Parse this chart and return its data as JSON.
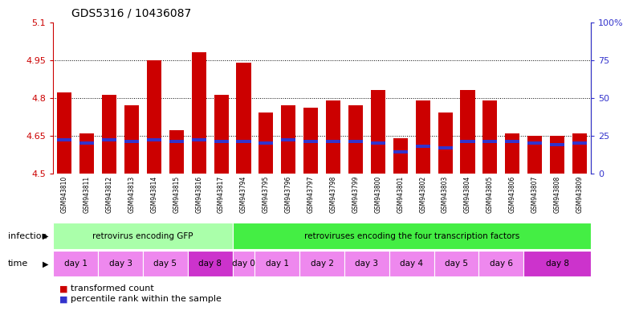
{
  "title": "GDS5316 / 10436087",
  "samples": [
    "GSM943810",
    "GSM943811",
    "GSM943812",
    "GSM943813",
    "GSM943814",
    "GSM943815",
    "GSM943816",
    "GSM943817",
    "GSM943794",
    "GSM943795",
    "GSM943796",
    "GSM943797",
    "GSM943798",
    "GSM943799",
    "GSM943800",
    "GSM943801",
    "GSM943802",
    "GSM943803",
    "GSM943804",
    "GSM943805",
    "GSM943806",
    "GSM943807",
    "GSM943808",
    "GSM943809"
  ],
  "transformed_count": [
    4.82,
    4.66,
    4.81,
    4.77,
    4.95,
    4.67,
    4.98,
    4.81,
    4.94,
    4.74,
    4.77,
    4.76,
    4.79,
    4.77,
    4.83,
    4.64,
    4.79,
    4.74,
    4.83,
    4.79,
    4.66,
    4.65,
    4.65,
    4.66
  ],
  "percentile_rank": [
    22,
    20,
    22,
    21,
    22,
    21,
    22,
    21,
    21,
    20,
    22,
    21,
    21,
    21,
    20,
    14,
    18,
    17,
    21,
    21,
    21,
    20,
    19,
    20
  ],
  "bar_base": 4.5,
  "ylim": [
    4.5,
    5.1
  ],
  "yticks": [
    4.5,
    4.65,
    4.8,
    4.95,
    5.1
  ],
  "ytick_labels": [
    "4.5",
    "4.65",
    "4.8",
    "4.95",
    "5.1"
  ],
  "y2lim": [
    0,
    100
  ],
  "y2ticks": [
    0,
    25,
    50,
    75,
    100
  ],
  "y2tick_labels": [
    "0",
    "25",
    "50",
    "75",
    "100%"
  ],
  "red_color": "#CC0000",
  "blue_color": "#3333CC",
  "grid_dotted": [
    4.65,
    4.8,
    4.95
  ],
  "infection_groups": [
    {
      "label": "retrovirus encoding GFP",
      "start": 0,
      "end": 8,
      "color": "#AAFFAA"
    },
    {
      "label": "retroviruses encoding the four transcription factors",
      "start": 8,
      "end": 24,
      "color": "#44EE44"
    }
  ],
  "time_groups": [
    {
      "label": "day 1",
      "start": 0,
      "end": 2,
      "color": "#EE88EE"
    },
    {
      "label": "day 3",
      "start": 2,
      "end": 4,
      "color": "#EE88EE"
    },
    {
      "label": "day 5",
      "start": 4,
      "end": 6,
      "color": "#EE88EE"
    },
    {
      "label": "day 8",
      "start": 6,
      "end": 8,
      "color": "#CC33CC"
    },
    {
      "label": "day 0",
      "start": 8,
      "end": 9,
      "color": "#EE88EE"
    },
    {
      "label": "day 1",
      "start": 9,
      "end": 11,
      "color": "#EE88EE"
    },
    {
      "label": "day 2",
      "start": 11,
      "end": 13,
      "color": "#EE88EE"
    },
    {
      "label": "day 3",
      "start": 13,
      "end": 15,
      "color": "#EE88EE"
    },
    {
      "label": "day 4",
      "start": 15,
      "end": 17,
      "color": "#EE88EE"
    },
    {
      "label": "day 5",
      "start": 17,
      "end": 19,
      "color": "#EE88EE"
    },
    {
      "label": "day 6",
      "start": 19,
      "end": 21,
      "color": "#EE88EE"
    },
    {
      "label": "day 8",
      "start": 21,
      "end": 24,
      "color": "#CC33CC"
    }
  ],
  "bg_color": "#FFFFFF",
  "xtick_bg": "#CCCCCC",
  "bar_width": 0.65
}
